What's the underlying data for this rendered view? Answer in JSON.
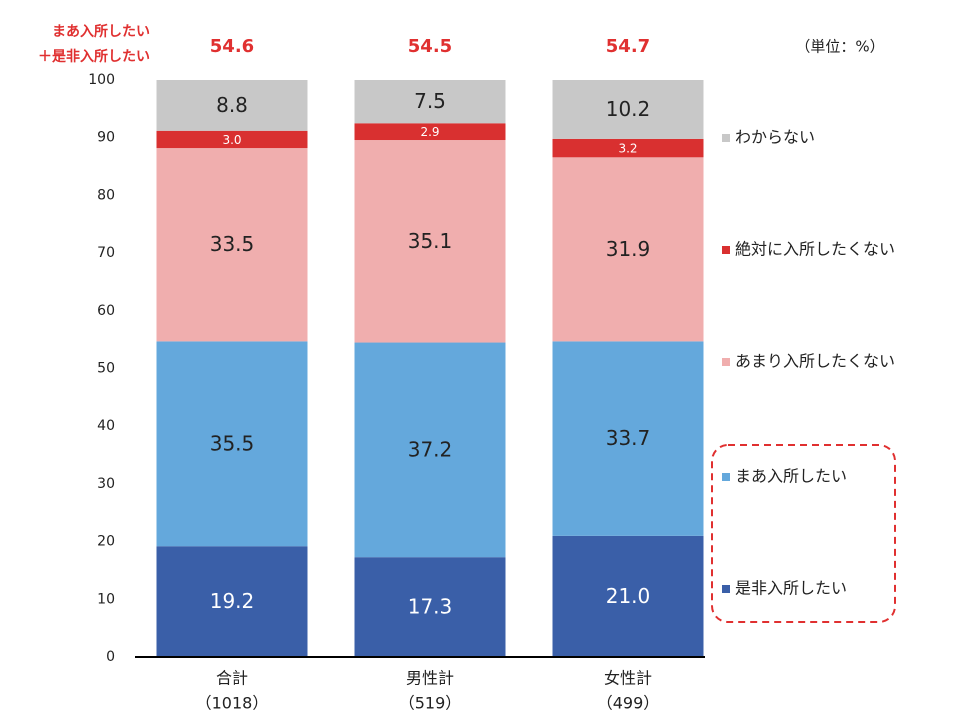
{
  "chart_data": {
    "type": "stacked_bar",
    "unit_label": "（単位：%）",
    "sum_label": [
      "まあ入所したい",
      "＋是非入所したい"
    ],
    "sum_values": [
      54.6,
      54.5,
      54.7
    ],
    "categories": [
      "合計",
      "男性計",
      "女性計"
    ],
    "category_counts": [
      "（1018）",
      "（519）",
      "（499）"
    ],
    "series": [
      {
        "name": "是非入所したい",
        "color": "#3a5fa8",
        "label_color": "#ffffff",
        "values": [
          19.2,
          17.3,
          21.0
        ],
        "value_labels": [
          "19.2",
          "17.3",
          "21.0"
        ]
      },
      {
        "name": "まあ入所したい",
        "color": "#64a8dc",
        "label_color": "#222222",
        "values": [
          35.5,
          37.2,
          33.7
        ],
        "value_labels": [
          "35.5",
          "37.2",
          "33.7"
        ]
      },
      {
        "name": "あまり入所したくない",
        "color": "#f0aeae",
        "label_color": "#222222",
        "values": [
          33.5,
          35.1,
          31.9
        ],
        "value_labels": [
          "33.5",
          "35.1",
          "31.9"
        ]
      },
      {
        "name": "絶対に入所したくない",
        "color": "#d93030",
        "label_color": "#ffffff",
        "values": [
          3.0,
          2.9,
          3.2
        ],
        "value_labels": [
          "3.0",
          "2.9",
          "3.2"
        ]
      },
      {
        "name": "わからない",
        "color": "#c8c8c8",
        "label_color": "#222222",
        "values": [
          8.8,
          7.5,
          10.2
        ],
        "value_labels": [
          "8.8",
          "7.5",
          "10.2"
        ]
      }
    ],
    "ylim": [
      0,
      100
    ],
    "yticks": [
      0,
      10,
      20,
      30,
      40,
      50,
      60,
      70,
      80,
      90,
      100
    ],
    "grid": false
  }
}
